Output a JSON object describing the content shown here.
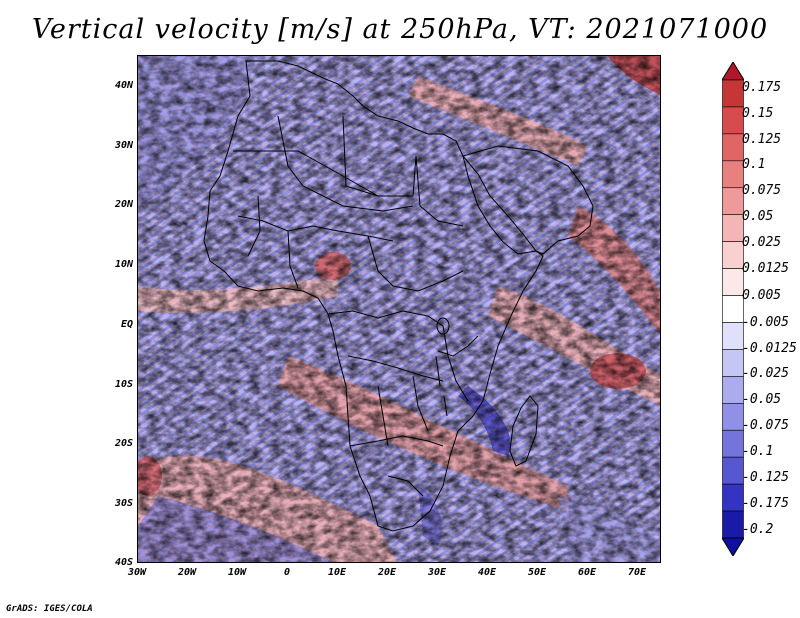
{
  "title": "Vertical velocity [m/s] at 250hPa, VT: 2021071000",
  "map": {
    "region": "Africa",
    "lat_range": [
      -40,
      45
    ],
    "lon_range": [
      -30,
      75
    ],
    "lat_ticks": [
      "40N",
      "30N",
      "20N",
      "10N",
      "EQ",
      "10S",
      "20S",
      "30S",
      "40S"
    ],
    "lon_ticks": [
      "30W",
      "20W",
      "10W",
      "0",
      "10E",
      "20E",
      "30E",
      "40E",
      "50E",
      "60E",
      "70E"
    ]
  },
  "colorbar": {
    "labels": [
      "0.175",
      "0.15",
      "0.125",
      "0.1",
      "0.075",
      "0.05",
      "0.025",
      "0.0125",
      "0.005",
      "-0.005",
      "-0.0125",
      "-0.025",
      "-0.05",
      "-0.075",
      "-0.1",
      "-0.125",
      "-0.175",
      "-0.2"
    ],
    "colors": [
      "#b2182b",
      "#c73636",
      "#d64b4b",
      "#e06666",
      "#e88080",
      "#ee9a9a",
      "#f3b5b5",
      "#f8d0d0",
      "#fce8e8",
      "#ffffff",
      "#e0e0fb",
      "#c6c6f5",
      "#ababee",
      "#9090e6",
      "#7474dd",
      "#5757d2",
      "#3333c4",
      "#1a1aa8",
      "#1010a0"
    ]
  },
  "footer": "GrADS: IGES/COLA"
}
